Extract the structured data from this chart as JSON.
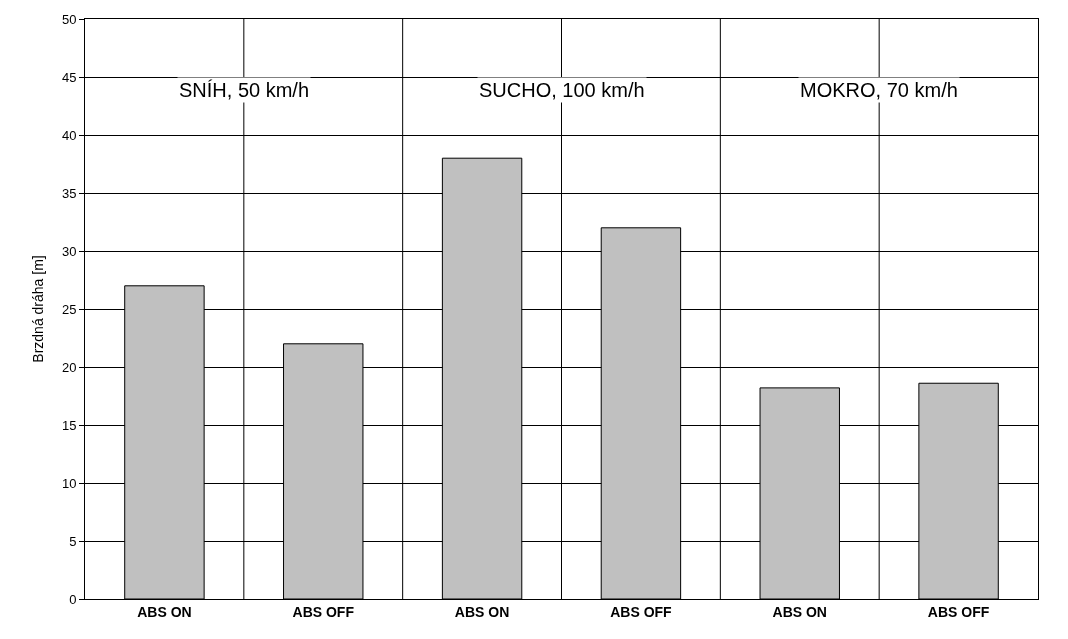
{
  "chart_data": {
    "type": "bar",
    "ylabel": "Brzdná dráha [m]",
    "categories": [
      "ABS ON",
      "ABS OFF",
      "ABS ON",
      "ABS OFF",
      "ABS ON",
      "ABS OFF"
    ],
    "values": [
      27,
      22,
      38,
      32,
      18.2,
      18.6
    ],
    "color": "#c0c0c0",
    "ylim": [
      0,
      50
    ],
    "yticks": [
      0,
      5,
      10,
      15,
      20,
      25,
      30,
      35,
      40,
      45,
      50
    ],
    "grid": true,
    "annotations": [
      "SNÍH, 50 km/h",
      "SUCHO, 100 km/h",
      "MOKRO, 70 km/h"
    ]
  }
}
